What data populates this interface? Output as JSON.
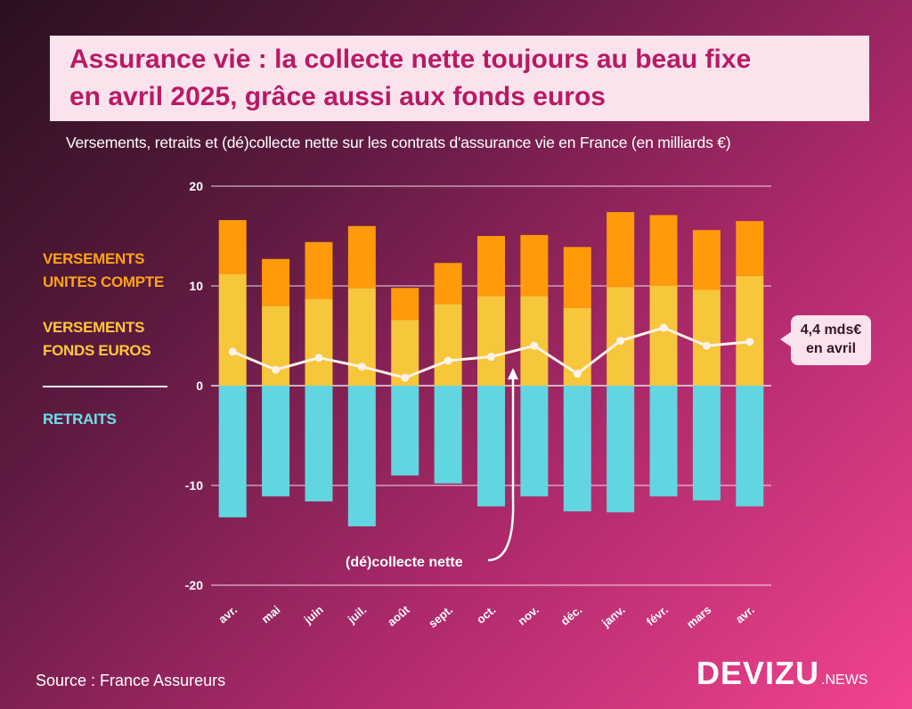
{
  "title": {
    "line1": "Assurance vie : la collecte nette toujours au beau fixe",
    "line2": "en avril 2025, grâce aussi aux fonds euros"
  },
  "subtitle": "Versements, retraits et (dé)collecte nette sur les contrats d'assurance vie en France (en milliards €)",
  "legend": {
    "uc_line1": "VERSEMENTS",
    "uc_line2": "UNITES COMPTE",
    "fe_line1": "VERSEMENTS",
    "fe_line2": "FONDS EUROS",
    "retraits": "RETRAITS"
  },
  "annotations": {
    "net_label": "(dé)collecte nette",
    "callout_line1": "4,4 mds€",
    "callout_line2": "en avril"
  },
  "source": "Source : France Assureurs",
  "brand": {
    "main": "DEVIZU",
    "sub": ".NEWS"
  },
  "colors": {
    "unites_compte": "#ff9a0a",
    "fonds_euros": "#f6c63b",
    "retraits": "#62d6e0",
    "net_line": "#fff3e8",
    "grid": "#ffffff"
  },
  "chart_data": {
    "type": "bar",
    "stacked": true,
    "categories": [
      "avr.",
      "mai",
      "juin",
      "juil.",
      "août",
      "sept.",
      "oct.",
      "nov.",
      "déc.",
      "janv.",
      "févr.",
      "mars",
      "avr."
    ],
    "series": [
      {
        "name": "VERSEMENTS FONDS EUROS",
        "values": [
          11.2,
          8.0,
          8.7,
          9.8,
          6.6,
          8.2,
          9.0,
          9.0,
          7.8,
          9.9,
          10.0,
          9.6,
          11.0
        ]
      },
      {
        "name": "VERSEMENTS UNITES COMPTE",
        "values": [
          5.4,
          4.7,
          5.7,
          6.2,
          3.2,
          4.1,
          6.0,
          6.1,
          6.1,
          7.5,
          7.1,
          6.0,
          5.5
        ]
      },
      {
        "name": "RETRAITS",
        "values": [
          -13.2,
          -11.1,
          -11.6,
          -14.1,
          -9.0,
          -9.8,
          -12.1,
          -11.1,
          -12.6,
          -12.7,
          -11.1,
          -11.5,
          -12.1
        ]
      },
      {
        "name": "(dé)collecte nette",
        "type": "line",
        "values": [
          3.4,
          1.6,
          2.8,
          1.9,
          0.8,
          2.5,
          2.9,
          4.0,
          1.2,
          4.5,
          5.8,
          4.0,
          4.4
        ]
      }
    ],
    "yticks": [
      20,
      10,
      0,
      -10,
      -20
    ],
    "ylim": [
      -20,
      20
    ],
    "title": "Assurance vie : la collecte nette toujours au beau fixe en avril 2025, grâce aussi aux fonds euros",
    "xlabel": "",
    "ylabel": "milliards €"
  }
}
